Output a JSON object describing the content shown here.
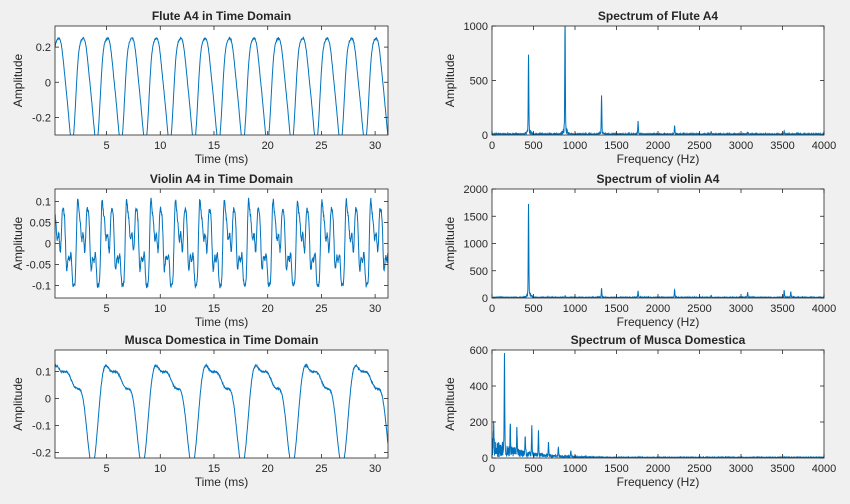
{
  "figure": {
    "background": "#f0f0f0",
    "line_color": "#0072bd",
    "axes_background": "#ffffff"
  },
  "chart_data": [
    {
      "type": "line",
      "id": "flute-time",
      "title": "Flute A4 in Time Domain",
      "xlabel": "Time (ms)",
      "ylabel": "Amplitude",
      "xlim": [
        0.2,
        31.2
      ],
      "ylim": [
        -0.3,
        0.32
      ],
      "xticks": [
        5,
        10,
        15,
        20,
        25,
        30
      ],
      "yticks": [
        0.2,
        0,
        -0.2
      ],
      "ytick_labels": [
        "0.2",
        "0",
        "-0.2"
      ],
      "signal": {
        "kind": "periodic",
        "frequency_per_ms": 0.44,
        "amplitude": 0.29,
        "harmonics": [
          [
            1,
            1.0,
            0
          ],
          [
            2,
            0.18,
            0.9
          ],
          [
            3,
            0.07,
            1.6
          ]
        ],
        "noise": 0.004
      }
    },
    {
      "type": "line",
      "id": "flute-spectrum",
      "title": "Spectrum of Flute A4",
      "xlabel": "Frequency (Hz)",
      "ylabel": "Amplitude",
      "xlim": [
        0,
        4000
      ],
      "ylim": [
        0,
        1000
      ],
      "xticks": [
        0,
        500,
        1000,
        1500,
        2000,
        2500,
        3000,
        3500,
        4000
      ],
      "yticks": [
        0,
        500,
        1000
      ],
      "peaks": [
        [
          440,
          700
        ],
        [
          880,
          1000
        ],
        [
          1320,
          340
        ],
        [
          1760,
          110
        ],
        [
          2200,
          75
        ],
        [
          2640,
          20
        ],
        [
          3080,
          20
        ],
        [
          3520,
          25
        ]
      ],
      "baseline": 8
    },
    {
      "type": "line",
      "id": "violin-time",
      "title": "Violin A4 in Time Domain",
      "xlabel": "Time (ms)",
      "ylabel": "Amplitude",
      "xlim": [
        0.2,
        31.2
      ],
      "ylim": [
        -0.13,
        0.13
      ],
      "xticks": [
        5,
        10,
        15,
        20,
        25,
        30
      ],
      "yticks": [
        0.1,
        0.05,
        0,
        -0.05,
        -0.1
      ],
      "ytick_labels": [
        "0.1",
        "0.05",
        "0",
        "-0.05",
        "-0.1"
      ],
      "signal": {
        "kind": "periodic",
        "frequency_per_ms": 0.44,
        "amplitude": 0.1,
        "harmonics": [
          [
            1,
            0.55,
            0
          ],
          [
            2,
            0.35,
            1.2
          ],
          [
            3,
            0.45,
            0.4
          ],
          [
            4,
            0.2,
            2.1
          ],
          [
            5,
            0.15,
            0.8
          ],
          [
            8,
            0.12,
            1.7
          ]
        ],
        "noise": 0.006
      }
    },
    {
      "type": "line",
      "id": "violin-spectrum",
      "title": "Spectrum of violin A4",
      "xlabel": "Frequency (Hz)",
      "ylabel": "Amplitude",
      "xlim": [
        0,
        4000
      ],
      "ylim": [
        0,
        2000
      ],
      "xticks": [
        0,
        500,
        1000,
        1500,
        2000,
        2500,
        3000,
        3500,
        4000
      ],
      "yticks": [
        0,
        500,
        1000,
        1500,
        2000
      ],
      "peaks": [
        [
          440,
          1600
        ],
        [
          880,
          30
        ],
        [
          1320,
          160
        ],
        [
          1760,
          110
        ],
        [
          2200,
          140
        ],
        [
          2640,
          40
        ],
        [
          3080,
          90
        ],
        [
          3520,
          130
        ],
        [
          3600,
          100
        ]
      ],
      "baseline": 10
    },
    {
      "type": "line",
      "id": "musca-time",
      "title": "Musca Domestica in Time Domain",
      "xlabel": "Time (ms)",
      "ylabel": "Amplitude",
      "xlim": [
        0.2,
        31.2
      ],
      "ylim": [
        -0.22,
        0.18
      ],
      "xticks": [
        5,
        10,
        15,
        20,
        25,
        30
      ],
      "yticks": [
        0.1,
        0,
        -0.1,
        -0.2
      ],
      "ytick_labels": [
        "0.1",
        "0",
        "-0.1",
        "-0.2"
      ],
      "signal": {
        "kind": "periodic",
        "frequency_per_ms": 0.215,
        "amplitude": 0.17,
        "harmonics": [
          [
            1,
            0.85,
            0
          ],
          [
            2,
            0.45,
            1.0
          ],
          [
            3,
            0.2,
            2.2
          ]
        ],
        "noise": 0.003
      }
    },
    {
      "type": "line",
      "id": "musca-spectrum",
      "title": "Spectrum of Musca Domestica",
      "xlabel": "Frequency (Hz)",
      "ylabel": "Amplitude",
      "xlim": [
        0,
        4000
      ],
      "ylim": [
        0,
        600
      ],
      "xticks": [
        0,
        500,
        1000,
        1500,
        2000,
        2500,
        3000,
        3500,
        4000
      ],
      "yticks": [
        0,
        200,
        400,
        600
      ],
      "peaks": [
        [
          20,
          100
        ],
        [
          150,
          490
        ],
        [
          220,
          150
        ],
        [
          300,
          130
        ],
        [
          400,
          110
        ],
        [
          480,
          140
        ],
        [
          560,
          120
        ],
        [
          680,
          70
        ],
        [
          800,
          50
        ],
        [
          950,
          30
        ]
      ],
      "broadband": {
        "start": 0,
        "end": 1400,
        "level": 80,
        "decay_hz": 350
      },
      "baseline": 3
    }
  ]
}
